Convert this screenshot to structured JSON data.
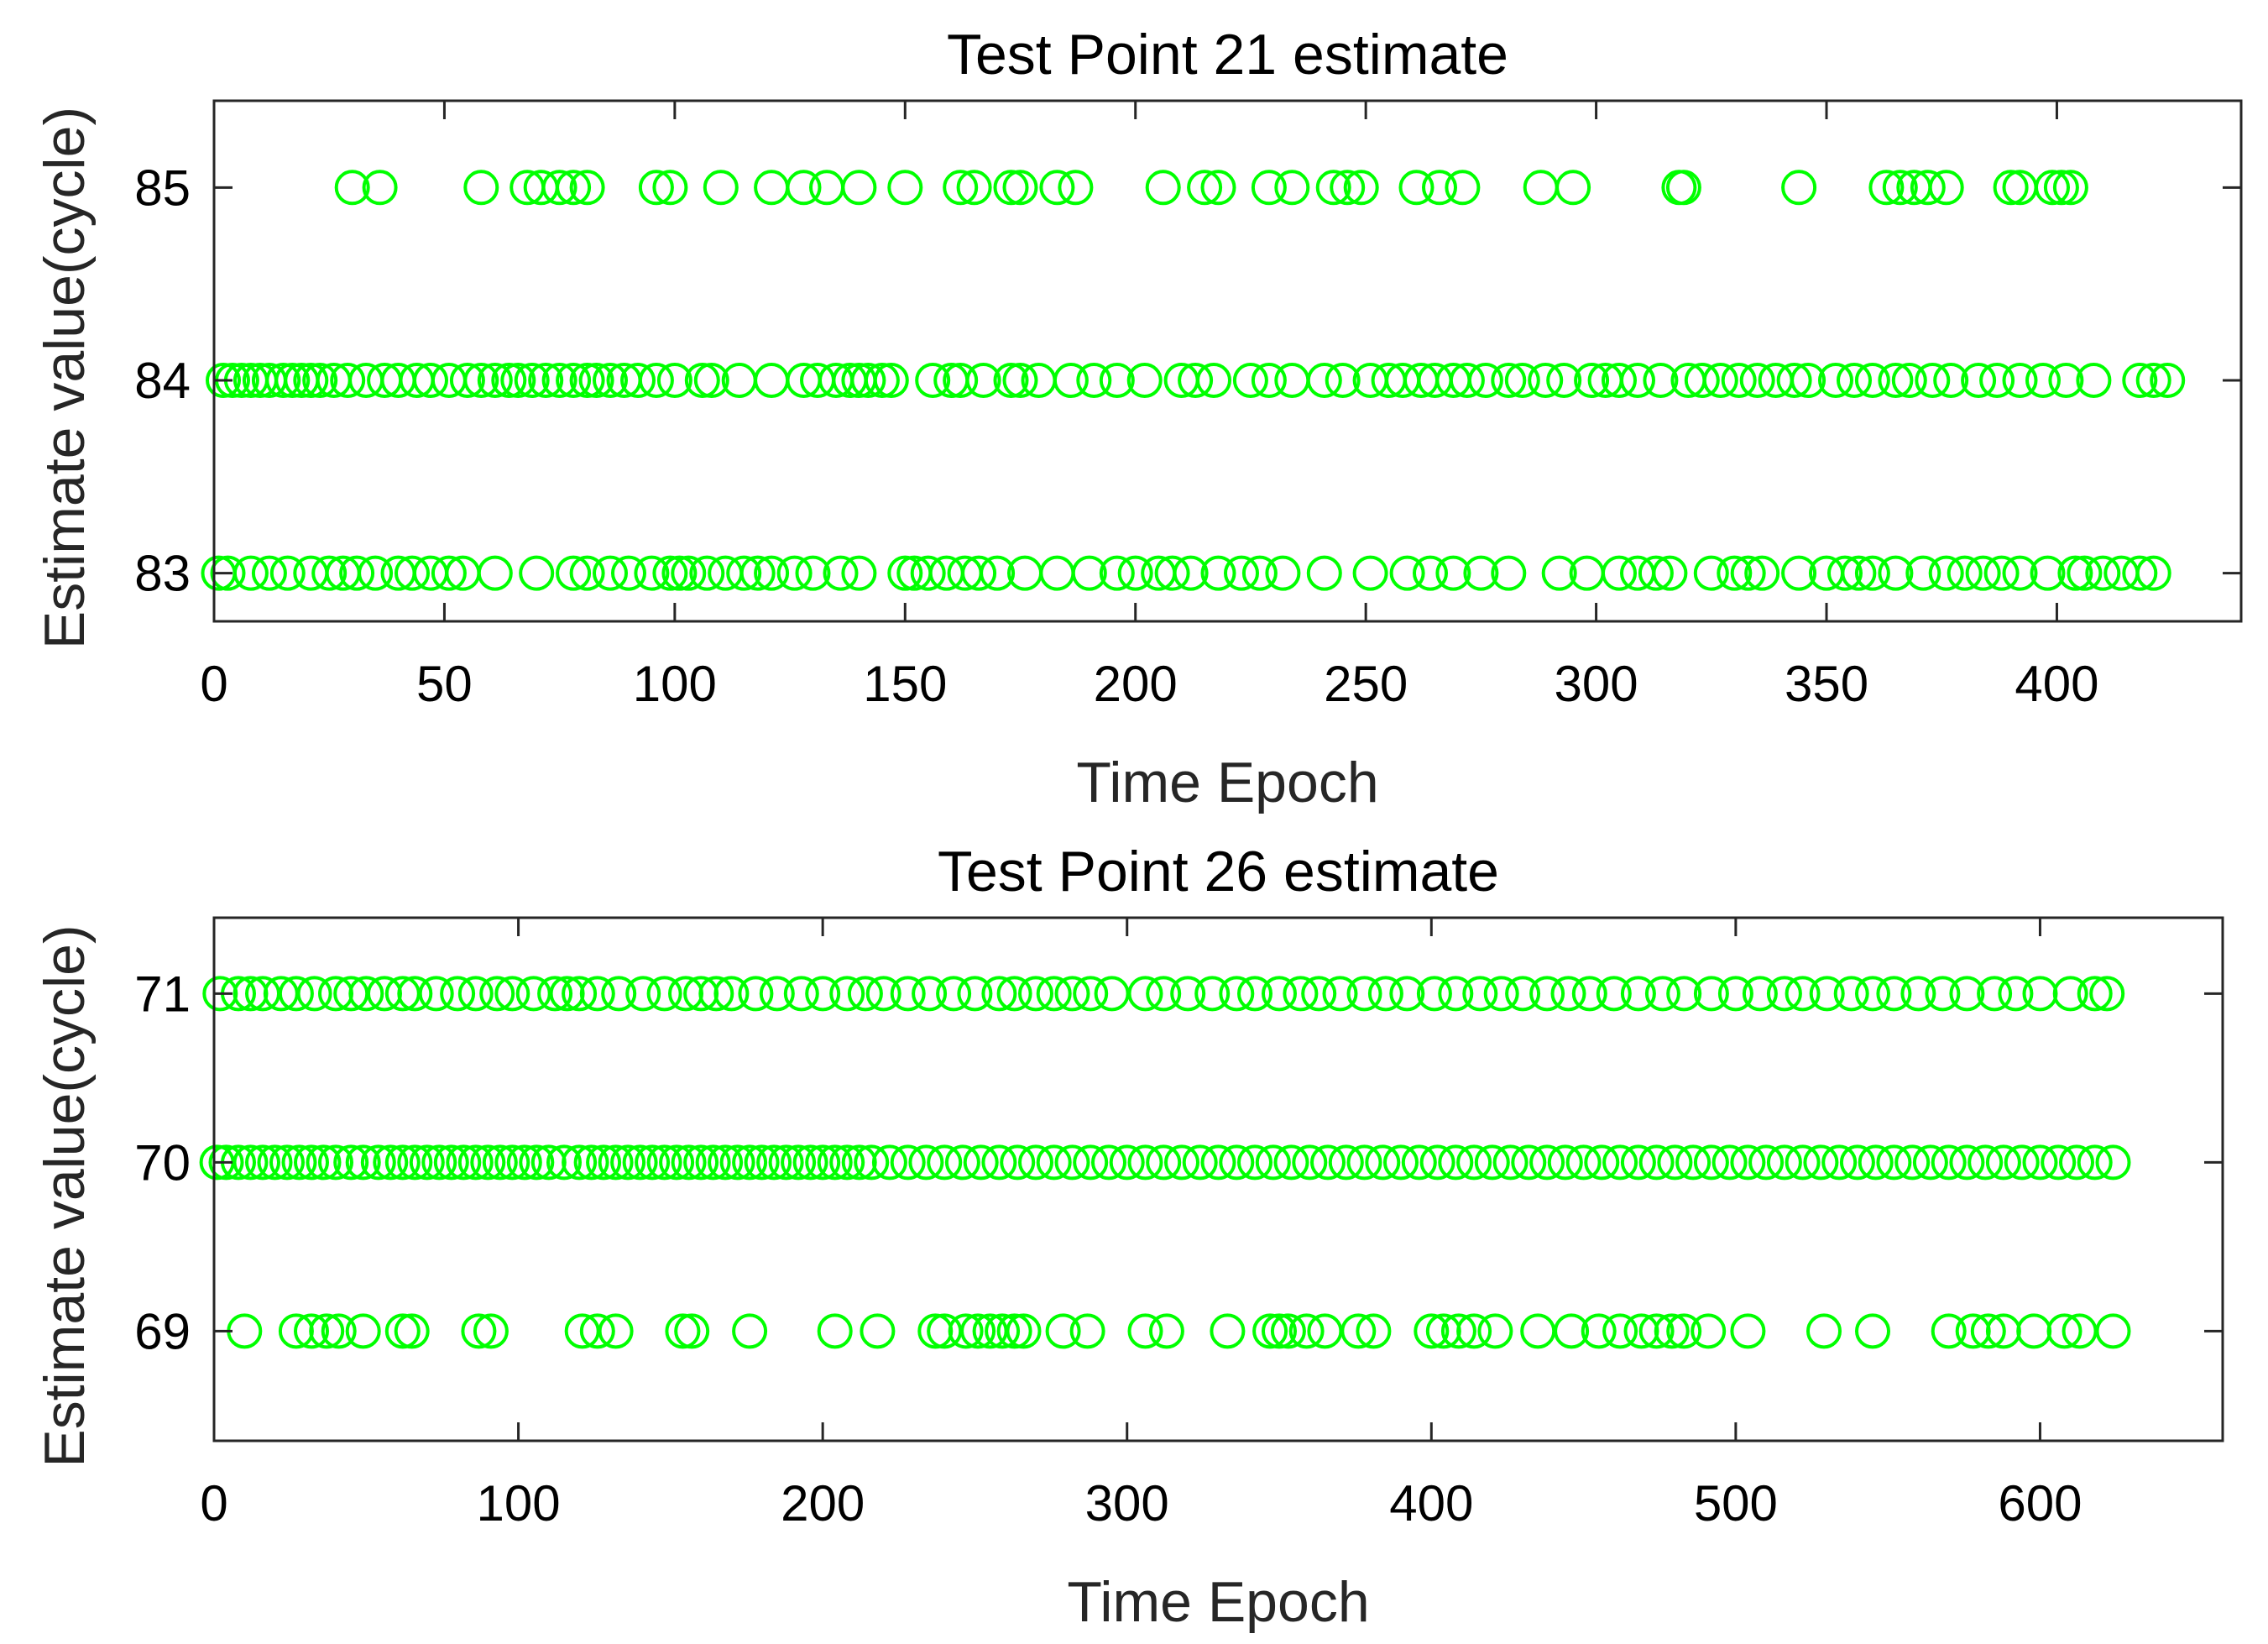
{
  "chart_data": [
    {
      "type": "scatter",
      "title": "Test Point 21 estimate",
      "xlabel": "Time Epoch",
      "ylabel": "Estimate value(cycle)",
      "xlim": [
        0,
        440
      ],
      "ylim": [
        82.75,
        85.45
      ],
      "xticks": [
        "0",
        "50",
        "100",
        "150",
        "200",
        "250",
        "300",
        "350",
        "400"
      ],
      "yticks": [
        "83",
        "84",
        "85"
      ],
      "grid": false,
      "marker": "open-circle",
      "color": "#00FF00",
      "series": [
        {
          "name": "estimate",
          "y": 85,
          "x": [
            30,
            36,
            58,
            68,
            71,
            75,
            78,
            81,
            96,
            99,
            110,
            121,
            128,
            133,
            140,
            150,
            162,
            165,
            173,
            175,
            183,
            187,
            206,
            215,
            218,
            229,
            234,
            243,
            246,
            249,
            261,
            266,
            271,
            288,
            295,
            318,
            319,
            344,
            363,
            366,
            369,
            372,
            376,
            390,
            392,
            399,
            401,
            403
          ]
        },
        {
          "name": "estimate",
          "y": 84,
          "x": [
            2,
            4,
            6,
            8,
            10,
            12,
            15,
            17,
            19,
            21,
            23,
            26,
            29,
            33,
            37,
            40,
            44,
            47,
            51,
            55,
            58,
            61,
            64,
            66,
            69,
            72,
            75,
            78,
            81,
            83,
            86,
            89,
            92,
            96,
            100,
            106,
            108,
            114,
            121,
            128,
            131,
            135,
            138,
            140,
            142,
            145,
            147,
            156,
            160,
            162,
            167,
            173,
            175,
            179,
            186,
            191,
            196,
            202,
            210,
            213,
            217,
            225,
            229,
            234,
            241,
            245,
            251,
            255,
            258,
            262,
            265,
            269,
            272,
            276,
            281,
            284,
            289,
            293,
            299,
            302,
            305,
            309,
            314,
            320,
            323,
            327,
            331,
            335,
            339,
            343,
            346,
            352,
            356,
            360,
            365,
            368,
            373,
            377,
            383,
            387,
            392,
            397,
            402,
            408,
            418,
            421,
            424
          ]
        },
        {
          "name": "estimate",
          "y": 83,
          "x": [
            1,
            3,
            8,
            12,
            16,
            21,
            25,
            28,
            31,
            35,
            40,
            43,
            47,
            51,
            54,
            61,
            70,
            78,
            81,
            86,
            90,
            95,
            99,
            101,
            103,
            107,
            111,
            115,
            118,
            121,
            126,
            130,
            136,
            140,
            150,
            152,
            155,
            159,
            163,
            166,
            170,
            176,
            183,
            190,
            196,
            200,
            205,
            208,
            212,
            218,
            223,
            227,
            232,
            241,
            251,
            259,
            264,
            269,
            275,
            281,
            292,
            298,
            305,
            309,
            313,
            316,
            325,
            330,
            333,
            336,
            344,
            350,
            354,
            357,
            360,
            365,
            371,
            376,
            380,
            384,
            388,
            392,
            398,
            404,
            406,
            410,
            414,
            418,
            421
          ]
        }
      ]
    },
    {
      "type": "scatter",
      "title": "Test Point 26 estimate",
      "xlabel": "Time Epoch",
      "ylabel": "Estimate value(cycle)",
      "xlim": [
        0,
        660
      ],
      "ylim": [
        68.35,
        71.45
      ],
      "xticks": [
        "0",
        "100",
        "200",
        "300",
        "400",
        "500",
        "600"
      ],
      "yticks": [
        "69",
        "70",
        "71"
      ],
      "grid": false,
      "marker": "open-circle",
      "color": "#00FF00",
      "series": [
        {
          "name": "estimate",
          "y": 71,
          "x": [
            2,
            8,
            12,
            16,
            22,
            27,
            33,
            40,
            45,
            50,
            56,
            62,
            66,
            73,
            80,
            86,
            93,
            98,
            105,
            112,
            116,
            120,
            126,
            133,
            141,
            148,
            155,
            160,
            165,
            170,
            178,
            185,
            193,
            200,
            208,
            214,
            220,
            228,
            235,
            243,
            250,
            258,
            263,
            270,
            276,
            282,
            288,
            295,
            306,
            312,
            320,
            328,
            336,
            342,
            350,
            357,
            363,
            370,
            378,
            385,
            392,
            401,
            408,
            416,
            423,
            430,
            438,
            445,
            452,
            460,
            468,
            476,
            483,
            492,
            500,
            508,
            516,
            522,
            530,
            538,
            545,
            552,
            560,
            568,
            576,
            585,
            592,
            600,
            610,
            618,
            622
          ]
        },
        {
          "name": "estimate",
          "y": 70,
          "x": [
            1,
            4,
            8,
            12,
            16,
            20,
            24,
            28,
            32,
            36,
            40,
            45,
            49,
            54,
            58,
            62,
            66,
            70,
            74,
            78,
            82,
            86,
            90,
            94,
            98,
            102,
            106,
            110,
            115,
            120,
            124,
            128,
            132,
            136,
            140,
            144,
            148,
            152,
            156,
            160,
            164,
            168,
            172,
            176,
            180,
            184,
            188,
            192,
            196,
            200,
            204,
            208,
            212,
            216,
            222,
            228,
            234,
            240,
            246,
            252,
            258,
            264,
            270,
            276,
            282,
            288,
            294,
            300,
            306,
            312,
            318,
            324,
            330,
            336,
            342,
            348,
            354,
            360,
            366,
            372,
            378,
            384,
            390,
            396,
            402,
            408,
            414,
            420,
            426,
            432,
            438,
            444,
            450,
            456,
            462,
            468,
            474,
            480,
            486,
            492,
            498,
            504,
            510,
            516,
            522,
            528,
            534,
            540,
            546,
            552,
            558,
            564,
            570,
            576,
            582,
            588,
            594,
            600,
            606,
            612,
            618,
            624
          ]
        },
        {
          "name": "estimate",
          "y": 69,
          "x": [
            10,
            27,
            32,
            37,
            41,
            49,
            62,
            65,
            87,
            91,
            121,
            126,
            132,
            154,
            157,
            176,
            204,
            218,
            237,
            240,
            247,
            251,
            255,
            259,
            263,
            266,
            279,
            287,
            306,
            313,
            333,
            347,
            350,
            353,
            359,
            365,
            376,
            381,
            400,
            404,
            409,
            414,
            421,
            435,
            446,
            455,
            462,
            469,
            474,
            479,
            483,
            491,
            504,
            529,
            545,
            570,
            578,
            583,
            588,
            598,
            608,
            613,
            624
          ]
        }
      ]
    }
  ]
}
